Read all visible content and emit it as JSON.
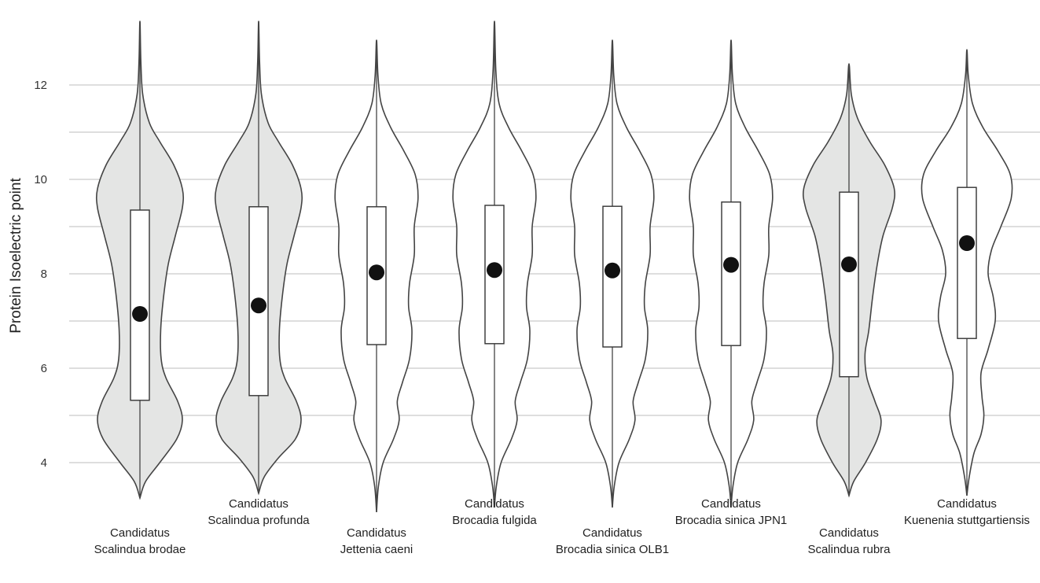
{
  "chart_data": {
    "type": "violin",
    "ylabel": "Protein Isoelectric point",
    "xlabel": "",
    "ylim": [
      3.0,
      13.6
    ],
    "yticks": [
      4,
      6,
      8,
      10,
      12
    ],
    "grid": "horizontal",
    "colors": {
      "shaded": "#e4e5e4",
      "plain": "#ffffff"
    },
    "series": [
      {
        "label_line1": "Candidatus",
        "label_line2": "Scalindua brodae",
        "label_row": "low",
        "shaded": true,
        "min": 3.25,
        "max": 13.35,
        "q1": 5.32,
        "median": 7.15,
        "q3": 9.35,
        "density": [
          [
            3.25,
            0
          ],
          [
            3.6,
            0.12
          ],
          [
            4.0,
            0.42
          ],
          [
            4.5,
            0.78
          ],
          [
            4.9,
            0.9
          ],
          [
            5.3,
            0.8
          ],
          [
            5.8,
            0.55
          ],
          [
            6.2,
            0.45
          ],
          [
            6.8,
            0.44
          ],
          [
            7.5,
            0.5
          ],
          [
            8.2,
            0.6
          ],
          [
            8.8,
            0.75
          ],
          [
            9.4,
            0.9
          ],
          [
            9.8,
            0.9
          ],
          [
            10.3,
            0.72
          ],
          [
            10.8,
            0.42
          ],
          [
            11.2,
            0.2
          ],
          [
            11.8,
            0.06
          ],
          [
            12.5,
            0.02
          ],
          [
            13.35,
            0
          ]
        ]
      },
      {
        "label_line1": "Candidatus",
        "label_line2": "Scalindua profunda",
        "label_row": "high",
        "shaded": true,
        "min": 3.35,
        "max": 13.35,
        "q1": 5.42,
        "median": 7.33,
        "q3": 9.42,
        "density": [
          [
            3.35,
            0
          ],
          [
            3.7,
            0.12
          ],
          [
            4.1,
            0.42
          ],
          [
            4.5,
            0.78
          ],
          [
            4.9,
            0.9
          ],
          [
            5.3,
            0.8
          ],
          [
            5.8,
            0.55
          ],
          [
            6.2,
            0.45
          ],
          [
            6.8,
            0.44
          ],
          [
            7.5,
            0.5
          ],
          [
            8.2,
            0.6
          ],
          [
            8.8,
            0.75
          ],
          [
            9.4,
            0.9
          ],
          [
            9.8,
            0.9
          ],
          [
            10.3,
            0.72
          ],
          [
            10.8,
            0.42
          ],
          [
            11.2,
            0.2
          ],
          [
            11.8,
            0.06
          ],
          [
            12.5,
            0.02
          ],
          [
            13.35,
            0
          ]
        ]
      },
      {
        "label_line1": "Candidatus",
        "label_line2": "Jettenia caeni",
        "label_row": "low",
        "shaded": false,
        "min": 2.95,
        "max": 12.95,
        "q1": 6.5,
        "median": 8.03,
        "q3": 9.42,
        "density": [
          [
            2.95,
            0
          ],
          [
            3.5,
            0.04
          ],
          [
            4.0,
            0.14
          ],
          [
            4.5,
            0.36
          ],
          [
            4.9,
            0.48
          ],
          [
            5.3,
            0.44
          ],
          [
            5.7,
            0.55
          ],
          [
            6.2,
            0.7
          ],
          [
            6.8,
            0.75
          ],
          [
            7.3,
            0.68
          ],
          [
            7.8,
            0.7
          ],
          [
            8.4,
            0.8
          ],
          [
            9.0,
            0.8
          ],
          [
            9.6,
            0.88
          ],
          [
            10.1,
            0.82
          ],
          [
            10.6,
            0.58
          ],
          [
            11.1,
            0.3
          ],
          [
            11.6,
            0.1
          ],
          [
            12.2,
            0.03
          ],
          [
            12.95,
            0
          ]
        ]
      },
      {
        "label_line1": "Candidatus",
        "label_line2": "Brocadia fulgida",
        "label_row": "high",
        "shaded": false,
        "min": 3.05,
        "max": 13.35,
        "q1": 6.52,
        "median": 8.08,
        "q3": 9.45,
        "density": [
          [
            3.05,
            0
          ],
          [
            3.5,
            0.04
          ],
          [
            4.0,
            0.14
          ],
          [
            4.5,
            0.36
          ],
          [
            4.9,
            0.48
          ],
          [
            5.3,
            0.44
          ],
          [
            5.7,
            0.55
          ],
          [
            6.2,
            0.7
          ],
          [
            6.8,
            0.75
          ],
          [
            7.3,
            0.68
          ],
          [
            7.8,
            0.7
          ],
          [
            8.4,
            0.8
          ],
          [
            9.0,
            0.8
          ],
          [
            9.6,
            0.88
          ],
          [
            10.1,
            0.82
          ],
          [
            10.6,
            0.58
          ],
          [
            11.1,
            0.3
          ],
          [
            11.6,
            0.1
          ],
          [
            12.3,
            0.03
          ],
          [
            13.35,
            0
          ]
        ]
      },
      {
        "label_line1": "Candidatus",
        "label_line2": "Brocadia sinica OLB1",
        "label_row": "low",
        "shaded": false,
        "min": 3.05,
        "max": 12.95,
        "q1": 6.45,
        "median": 8.07,
        "q3": 9.43,
        "density": [
          [
            3.05,
            0
          ],
          [
            3.5,
            0.04
          ],
          [
            4.0,
            0.14
          ],
          [
            4.5,
            0.36
          ],
          [
            4.9,
            0.48
          ],
          [
            5.3,
            0.44
          ],
          [
            5.7,
            0.55
          ],
          [
            6.2,
            0.7
          ],
          [
            6.8,
            0.75
          ],
          [
            7.3,
            0.68
          ],
          [
            7.8,
            0.7
          ],
          [
            8.4,
            0.8
          ],
          [
            9.0,
            0.8
          ],
          [
            9.6,
            0.88
          ],
          [
            10.1,
            0.82
          ],
          [
            10.6,
            0.58
          ],
          [
            11.1,
            0.3
          ],
          [
            11.6,
            0.1
          ],
          [
            12.2,
            0.03
          ],
          [
            12.95,
            0
          ]
        ]
      },
      {
        "label_line1": "Candidatus",
        "label_line2": "Brocadia sinica JPN1",
        "label_row": "high",
        "shaded": false,
        "min": 3.05,
        "max": 12.95,
        "q1": 6.48,
        "median": 8.19,
        "q3": 9.52,
        "density": [
          [
            3.05,
            0
          ],
          [
            3.5,
            0.04
          ],
          [
            4.0,
            0.14
          ],
          [
            4.5,
            0.36
          ],
          [
            4.9,
            0.48
          ],
          [
            5.3,
            0.44
          ],
          [
            5.7,
            0.55
          ],
          [
            6.2,
            0.7
          ],
          [
            6.8,
            0.75
          ],
          [
            7.3,
            0.68
          ],
          [
            7.8,
            0.7
          ],
          [
            8.4,
            0.8
          ],
          [
            9.0,
            0.8
          ],
          [
            9.6,
            0.88
          ],
          [
            10.1,
            0.82
          ],
          [
            10.6,
            0.58
          ],
          [
            11.1,
            0.3
          ],
          [
            11.6,
            0.1
          ],
          [
            12.2,
            0.03
          ],
          [
            12.95,
            0
          ]
        ]
      },
      {
        "label_line1": "Candidatus",
        "label_line2": "Scalindua rubra",
        "label_row": "low",
        "shaded": true,
        "min": 3.3,
        "max": 12.45,
        "q1": 5.82,
        "median": 8.2,
        "q3": 9.73,
        "density": [
          [
            3.3,
            0
          ],
          [
            3.6,
            0.1
          ],
          [
            4.0,
            0.35
          ],
          [
            4.5,
            0.6
          ],
          [
            4.9,
            0.68
          ],
          [
            5.3,
            0.55
          ],
          [
            5.8,
            0.38
          ],
          [
            6.3,
            0.34
          ],
          [
            6.8,
            0.42
          ],
          [
            7.5,
            0.5
          ],
          [
            8.2,
            0.6
          ],
          [
            8.8,
            0.72
          ],
          [
            9.4,
            0.92
          ],
          [
            9.8,
            0.96
          ],
          [
            10.3,
            0.76
          ],
          [
            10.8,
            0.44
          ],
          [
            11.3,
            0.18
          ],
          [
            11.8,
            0.05
          ],
          [
            12.45,
            0
          ]
        ]
      },
      {
        "label_line1": "Candidatus",
        "label_line2": "Kuenenia stuttgartiensis",
        "label_row": "high",
        "shaded": false,
        "min": 3.3,
        "max": 12.75,
        "q1": 6.63,
        "median": 8.65,
        "q3": 9.83,
        "density": [
          [
            3.3,
            0
          ],
          [
            3.7,
            0.05
          ],
          [
            4.2,
            0.15
          ],
          [
            4.6,
            0.3
          ],
          [
            5.0,
            0.36
          ],
          [
            5.4,
            0.32
          ],
          [
            5.9,
            0.3
          ],
          [
            6.4,
            0.45
          ],
          [
            7.0,
            0.6
          ],
          [
            7.5,
            0.56
          ],
          [
            8.0,
            0.45
          ],
          [
            8.5,
            0.52
          ],
          [
            9.0,
            0.72
          ],
          [
            9.6,
            0.94
          ],
          [
            10.1,
            0.92
          ],
          [
            10.6,
            0.66
          ],
          [
            11.1,
            0.34
          ],
          [
            11.6,
            0.12
          ],
          [
            12.2,
            0.03
          ],
          [
            12.75,
            0
          ]
        ]
      }
    ]
  }
}
